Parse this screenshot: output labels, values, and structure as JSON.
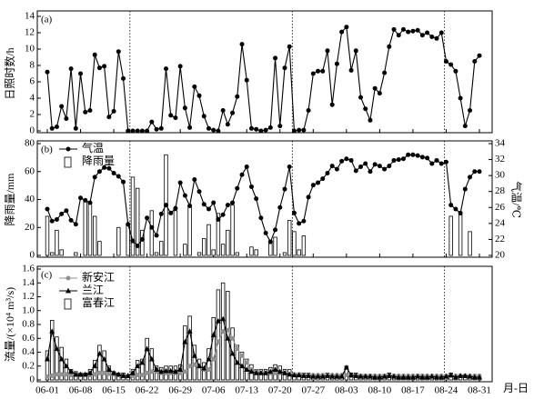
{
  "chart_data": [
    {
      "type": "combo",
      "panel_label": "(a)",
      "y_label": "日照时数/h",
      "ylim": [
        0,
        14
      ],
      "yticks": [
        0,
        2,
        4,
        6,
        8,
        10,
        12,
        14
      ],
      "vlines": [
        17.4,
        51.6,
        83.6
      ],
      "series": [
        {
          "name": "日照时数",
          "type": "line",
          "marker": "circle",
          "color": "#000000",
          "values": [
            7.2,
            0.3,
            0.5,
            3.0,
            1.5,
            7.6,
            0.3,
            7.0,
            2.3,
            2.5,
            9.3,
            7.7,
            7.9,
            1.7,
            2.4,
            9.7,
            6.4,
            0,
            0,
            0,
            0,
            0,
            1.1,
            0.2,
            0.3,
            7.6,
            1.9,
            1.6,
            7.9,
            2.8,
            0.4,
            5.4,
            4.3,
            1.8,
            0.3,
            0.1,
            0,
            2.5,
            0.8,
            2.2,
            4.2,
            10.6,
            6.2,
            0.3,
            0.2,
            0,
            0.1,
            0.4,
            8.9,
            0.6,
            7.7,
            10.3,
            0,
            0.1,
            0.1,
            2.5,
            7.0,
            7.3,
            7.3,
            9.8,
            3.2,
            8.2,
            12.1,
            12.7,
            7.4,
            9.8,
            4.1,
            2.7,
            1.3,
            5.2,
            4.6,
            7.1,
            10.3,
            12.4,
            11.7,
            12.4,
            12.1,
            12.2,
            12.3,
            11.7,
            12.0,
            11.5,
            11.3,
            12.0,
            8.5,
            8.1,
            7.3,
            4.0,
            0.6,
            2.5,
            8.5,
            9.2
          ]
        }
      ]
    },
    {
      "type": "combo",
      "panel_label": "(b)",
      "y_label": "降雨量/mm",
      "y2_label": "气温/℃",
      "ylim": [
        0,
        80
      ],
      "yticks": [
        0,
        20,
        40,
        60,
        80
      ],
      "y2lim": [
        20,
        34
      ],
      "y2ticks": [
        20,
        22,
        24,
        26,
        28,
        30,
        32,
        34
      ],
      "vlines": [
        17.4,
        51.6,
        83.6
      ],
      "legend": "upper left",
      "series": [
        {
          "name": "气温",
          "type": "line",
          "marker": "circle",
          "color": "#000000",
          "axis": "y2",
          "values": [
            25.8,
            24.3,
            24.5,
            25.2,
            25.6,
            24.4,
            23.9,
            27.2,
            26.9,
            26.6,
            29.8,
            30.5,
            31.0,
            30.9,
            30.3,
            29.9,
            29.2,
            23.9,
            21.8,
            21.2,
            22.0,
            24.7,
            23.5,
            22.5,
            25.2,
            26.3,
            25.3,
            25.9,
            29.1,
            27.5,
            26.2,
            29.5,
            28.0,
            26.4,
            25.8,
            26.6,
            24.5,
            25.1,
            26.3,
            26.6,
            28.4,
            30.1,
            31.1,
            28.6,
            27.1,
            24.7,
            22.8,
            21.7,
            23.2,
            26.0,
            28.3,
            31.1,
            25.3,
            24.0,
            24.3,
            27.3,
            28.8,
            29.1,
            29.6,
            30.3,
            31.2,
            30.8,
            31.8,
            32.1,
            31.9,
            30.6,
            31.1,
            31.5,
            30.5,
            31.4,
            31.2,
            30.8,
            31.2,
            31.9,
            32.0,
            32.1,
            32.6,
            32.6,
            32.5,
            32.3,
            32.2,
            31.5,
            31.9,
            31.5,
            31.7,
            26.3,
            25.8,
            25.3,
            28.3,
            29.8,
            30.5,
            30.5
          ]
        },
        {
          "name": "降雨量",
          "type": "bar",
          "color": "#ffffff",
          "values": [
            28,
            2,
            18,
            4,
            0,
            0,
            2,
            0,
            39,
            38,
            28,
            10,
            0,
            0,
            0,
            20,
            0,
            22,
            56,
            48,
            18,
            0,
            32,
            2,
            10,
            72,
            0,
            32,
            0,
            8,
            36,
            0,
            2,
            12,
            22,
            4,
            30,
            8,
            18,
            36,
            2,
            0,
            0,
            6,
            4,
            0,
            0,
            10,
            13,
            0,
            2,
            25,
            17,
            4,
            14,
            0,
            0,
            0,
            0,
            0,
            0,
            0,
            0,
            0,
            0,
            0,
            0,
            0,
            0,
            0,
            0,
            0,
            0,
            0,
            0,
            0,
            0,
            0,
            0,
            0,
            0,
            0,
            0,
            0,
            0,
            28,
            0,
            29,
            0,
            17,
            0,
            0
          ]
        }
      ]
    },
    {
      "type": "combo",
      "panel_label": "(c)",
      "y_label": "流量/(×10⁴ m³/s)",
      "x_label": "月-日",
      "ylim": [
        0,
        1.6
      ],
      "yticks": [
        0,
        0.2,
        0.4,
        0.6,
        0.8,
        {
          "value": 1,
          "label": "1.0"
        },
        1.2,
        1.4,
        1.6
      ],
      "vlines": [
        17.4,
        51.6,
        83.6
      ],
      "legend": "upper left",
      "categories": [
        "06-01",
        null,
        null,
        null,
        null,
        null,
        null,
        "06-08",
        null,
        null,
        null,
        null,
        null,
        null,
        "06-15",
        null,
        null,
        null,
        null,
        null,
        null,
        "06-22",
        null,
        null,
        null,
        null,
        null,
        null,
        "06-29",
        null,
        null,
        null,
        null,
        null,
        null,
        "07-06",
        null,
        null,
        null,
        null,
        null,
        null,
        "07-13",
        null,
        null,
        null,
        null,
        null,
        null,
        "07-20",
        null,
        null,
        null,
        null,
        null,
        null,
        "07-27",
        null,
        null,
        null,
        null,
        null,
        null,
        "08-03",
        null,
        null,
        null,
        null,
        null,
        null,
        "08-10",
        null,
        null,
        null,
        null,
        null,
        null,
        "08-17",
        null,
        null,
        null,
        null,
        null,
        null,
        "08-24",
        null,
        null,
        null,
        null,
        null,
        null,
        "08-31"
      ],
      "series": [
        {
          "name": "新安江",
          "type": "line",
          "marker": "circle",
          "color": "#909090",
          "values": [
            0.05,
            0.06,
            0.08,
            0.08,
            0.08,
            0.07,
            0.07,
            0.07,
            0.07,
            0.07,
            0.08,
            0.1,
            0.1,
            0.09,
            0.08,
            0.07,
            0.06,
            0.06,
            0.06,
            0.07,
            0.07,
            0.1,
            0.12,
            0.12,
            0.1,
            0.1,
            0.1,
            0.1,
            0.1,
            0.12,
            0.2,
            0.22,
            0.2,
            0.15,
            0.15,
            0.3,
            0.55,
            0.7,
            0.72,
            0.6,
            0.45,
            0.35,
            0.25,
            0.15,
            0.12,
            0.1,
            0.1,
            0.1,
            0.1,
            0.1,
            0.1,
            0.08,
            0.08,
            0.08,
            0.07,
            0.07,
            0.07,
            0.07,
            0.07,
            0.07,
            0.07,
            0.07,
            0.07,
            0.07,
            0.06,
            0.06,
            0.06,
            0.06,
            0.06,
            0.06,
            0.06,
            0.06,
            0.06,
            0.06,
            0.06,
            0.06,
            0.06,
            0.06,
            0.06,
            0.06,
            0.06,
            0.06,
            0.06,
            0.06,
            0.06,
            0.06,
            0.06,
            0.06,
            0.06,
            0.06,
            0.06,
            0.06
          ]
        },
        {
          "name": "兰江",
          "type": "line",
          "marker": "triangle",
          "color": "#000000",
          "values": [
            0.3,
            0.7,
            0.45,
            0.3,
            0.2,
            0.12,
            0.08,
            0.08,
            0.08,
            0.1,
            0.2,
            0.38,
            0.3,
            0.15,
            0.1,
            0.08,
            0.06,
            0.06,
            0.1,
            0.2,
            0.25,
            0.45,
            0.3,
            0.15,
            0.12,
            0.13,
            0.13,
            0.12,
            0.15,
            0.55,
            0.7,
            0.35,
            0.2,
            0.17,
            0.3,
            0.65,
            0.85,
            0.88,
            0.6,
            0.38,
            0.25,
            0.2,
            0.15,
            0.12,
            0.1,
            0.1,
            0.1,
            0.12,
            0.15,
            0.12,
            0.1,
            0.08,
            0.07,
            0.07,
            0.06,
            0.06,
            0.05,
            0.05,
            0.05,
            0.06,
            0.05,
            0.05,
            0.05,
            0.18,
            0.07,
            0.06,
            0.05,
            0.05,
            0.05,
            0.04,
            0.04,
            0.05,
            0.06,
            0.05,
            0.04,
            0.04,
            0.04,
            0.04,
            0.05,
            0.04,
            0.04,
            0.05,
            0.04,
            0.04,
            0.05,
            0.07,
            0.04,
            0.06,
            0.06,
            0.05,
            0.04,
            0.04
          ]
        },
        {
          "name": "富春江",
          "type": "bar",
          "color": "#ffffff",
          "values": [
            0.42,
            0.86,
            0.62,
            0.47,
            0.3,
            0.15,
            0.12,
            0.1,
            0.1,
            0.15,
            0.28,
            0.5,
            0.42,
            0.2,
            0.12,
            0.1,
            0.1,
            0.08,
            0.15,
            0.28,
            0.3,
            0.6,
            0.45,
            0.2,
            0.18,
            0.2,
            0.2,
            0.2,
            0.22,
            0.78,
            0.92,
            0.5,
            0.3,
            0.25,
            0.45,
            0.9,
            1.3,
            1.4,
            1.28,
            0.75,
            0.5,
            0.4,
            0.3,
            0.22,
            0.15,
            0.15,
            0.15,
            0.18,
            0.22,
            0.2,
            0.15,
            0.15,
            0.1,
            0.1,
            0.1,
            0.1,
            0.08,
            0.08,
            0.08,
            0.1,
            0.08,
            0.08,
            0.08,
            0.2,
            0.1,
            0.1,
            0.08,
            0.08,
            0.08,
            0.05,
            0.05,
            0.08,
            0.1,
            0.08,
            0.05,
            0.05,
            0.05,
            0.05,
            0.08,
            0.05,
            0.05,
            0.06,
            0.05,
            0.05,
            0.06,
            0.1,
            0.05,
            0.08,
            0.08,
            0.06,
            0.05,
            0.05
          ]
        }
      ]
    }
  ]
}
